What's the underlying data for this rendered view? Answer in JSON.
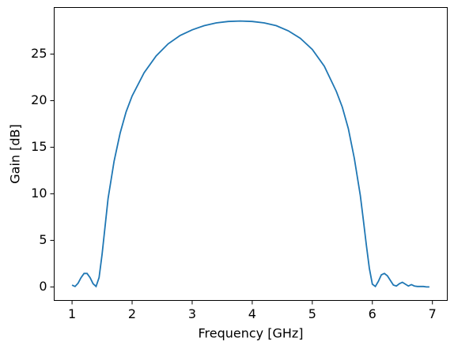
{
  "chart_data": {
    "type": "line",
    "xlabel": "Frequency [GHz]",
    "ylabel": "Gain [dB]",
    "x": [
      1.0,
      1.05,
      1.1,
      1.15,
      1.2,
      1.25,
      1.3,
      1.35,
      1.4,
      1.45,
      1.5,
      1.55,
      1.6,
      1.7,
      1.8,
      1.9,
      2.0,
      2.2,
      2.4,
      2.6,
      2.8,
      3.0,
      3.2,
      3.4,
      3.6,
      3.8,
      4.0,
      4.2,
      4.4,
      4.6,
      4.8,
      5.0,
      5.2,
      5.4,
      5.5,
      5.6,
      5.7,
      5.8,
      5.85,
      5.9,
      5.95,
      6.0,
      6.05,
      6.1,
      6.15,
      6.2,
      6.25,
      6.3,
      6.35,
      6.4,
      6.45,
      6.5,
      6.55,
      6.6,
      6.65,
      6.7,
      6.75,
      6.8,
      6.85,
      6.9,
      6.95
    ],
    "series": [
      {
        "color": "#1f77b4",
        "values": [
          0.2,
          0.05,
          0.4,
          1.0,
          1.45,
          1.45,
          1.0,
          0.35,
          0.05,
          1.0,
          3.5,
          6.5,
          9.5,
          13.5,
          16.5,
          18.8,
          20.5,
          23.0,
          24.8,
          26.1,
          27.0,
          27.6,
          28.05,
          28.35,
          28.5,
          28.55,
          28.5,
          28.35,
          28.05,
          27.5,
          26.7,
          25.5,
          23.7,
          21.0,
          19.3,
          17.0,
          13.8,
          9.8,
          7.2,
          4.5,
          2.0,
          0.3,
          0.05,
          0.6,
          1.3,
          1.45,
          1.2,
          0.7,
          0.2,
          0.1,
          0.35,
          0.5,
          0.3,
          0.1,
          0.25,
          0.1,
          0.05,
          0.05,
          0.05,
          0.0,
          0.0
        ]
      }
    ],
    "xlim": [
      0.7025,
      7.2475
    ],
    "ylim": [
      -1.45,
      30.0
    ],
    "xticks": [
      1,
      2,
      3,
      4,
      5,
      6,
      7
    ],
    "yticks": [
      0,
      5,
      10,
      15,
      20,
      25
    ]
  }
}
